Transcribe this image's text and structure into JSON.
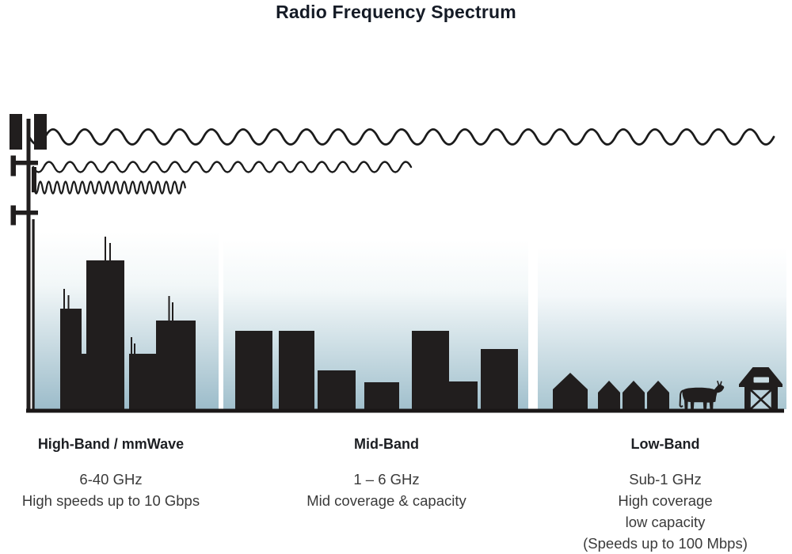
{
  "title": "Radio Frequency Spectrum",
  "sections": [
    {
      "id": "high-band",
      "heading": "High-Band / mmWave",
      "lines": [
        "6-40 GHz",
        "High speeds up to 10 Gbps"
      ],
      "scene": "city-skyscrapers-with-antennas"
    },
    {
      "id": "mid-band",
      "heading": "Mid-Band",
      "lines": [
        "1 – 6 GHz",
        "Mid coverage & capacity"
      ],
      "scene": "mid-rise-buildings"
    },
    {
      "id": "low-band",
      "heading": "Low-Band",
      "lines": [
        "Sub-1 GHz",
        "High coverage",
        "low capacity",
        "(Speeds up to 100 Mbps)"
      ],
      "scene": "rural-houses-cow-barn"
    }
  ],
  "icons": {
    "tower": "cell-tower-icon",
    "waves": [
      "low-frequency-wave",
      "mid-frequency-wave",
      "high-frequency-wave"
    ],
    "farm": [
      "house-icon",
      "cow-icon",
      "barn-icon"
    ]
  },
  "colors": {
    "title": "#151b26",
    "heading": "#1d1f23",
    "body_text": "#3a3a3a",
    "silhouette": "#211e1e",
    "sky_bottom_high": "#9cbcca",
    "sky_bottom_mid": "#a1c0cd",
    "sky_bottom_low": "#a9c6d1",
    "background": "#ffffff"
  }
}
